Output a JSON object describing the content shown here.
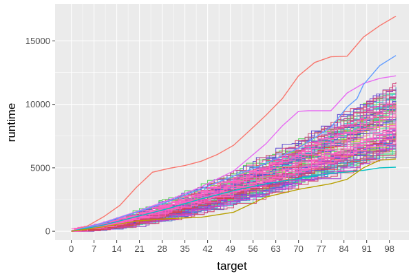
{
  "chart_data": {
    "type": "line",
    "xlabel": "target",
    "ylabel": "runtime",
    "xlim": [
      -5,
      104
    ],
    "ylim": [
      -700,
      17900
    ],
    "x_ticks": [
      0,
      7,
      14,
      21,
      28,
      35,
      42,
      49,
      56,
      63,
      70,
      77,
      84,
      91,
      98
    ],
    "x_tick_labels": [
      "0",
      "7",
      "14",
      "21",
      "28",
      "35",
      "42",
      "49",
      "56",
      "63",
      "70",
      "77",
      "84",
      "91",
      "98"
    ],
    "y_ticks": [
      0,
      5000,
      10000,
      15000
    ],
    "y_tick_labels": [
      "0",
      "5000",
      "10000",
      "15000"
    ],
    "grid": true,
    "legend": "none",
    "panel_background": "#ebebeb",
    "grid_color": "#ffffff",
    "series_count": 100,
    "x_range": [
      0,
      100
    ],
    "final_value_range": [
      5050,
      16950
    ],
    "highlighted_series": [
      {
        "color": "#f8766d",
        "x": [
          0,
          5,
          10,
          15,
          20,
          25,
          30,
          35,
          40,
          45,
          50,
          55,
          60,
          65,
          70,
          75,
          80,
          85,
          90,
          95,
          100
        ],
        "values": [
          0,
          420,
          1150,
          2050,
          3450,
          4650,
          4950,
          5180,
          5520,
          6050,
          6780,
          7950,
          9150,
          10450,
          12250,
          13300,
          13750,
          13800,
          15300,
          16200,
          16950
        ]
      },
      {
        "color": "#e76bf3",
        "x": [
          0,
          10,
          20,
          30,
          40,
          50,
          60,
          65,
          70,
          73,
          80,
          85,
          90,
          95,
          100
        ],
        "values": [
          0,
          700,
          1550,
          2450,
          3500,
          4750,
          6900,
          8300,
          9450,
          9500,
          9500,
          10900,
          11650,
          12050,
          12250
        ]
      },
      {
        "color": "#619cff",
        "x": [
          0,
          10,
          20,
          30,
          40,
          50,
          60,
          70,
          80,
          85,
          88,
          90,
          95,
          100
        ],
        "values": [
          0,
          650,
          1500,
          2350,
          3350,
          4350,
          5350,
          6550,
          8200,
          9800,
          10450,
          11550,
          13050,
          13850
        ]
      },
      {
        "color": "#00bfc4",
        "x": [
          0,
          10,
          20,
          30,
          40,
          50,
          60,
          70,
          80,
          90,
          95,
          100
        ],
        "values": [
          0,
          500,
          1150,
          1800,
          2550,
          3200,
          3750,
          4150,
          4550,
          4800,
          5000,
          5050
        ]
      },
      {
        "color": "#b79f00",
        "x": [
          0,
          10,
          20,
          30,
          40,
          50,
          60,
          70,
          80,
          85,
          90,
          95,
          100
        ],
        "values": [
          0,
          350,
          800,
          1000,
          1100,
          1500,
          2700,
          3300,
          3750,
          4100,
          5000,
          5600,
          5700
        ]
      }
    ]
  }
}
